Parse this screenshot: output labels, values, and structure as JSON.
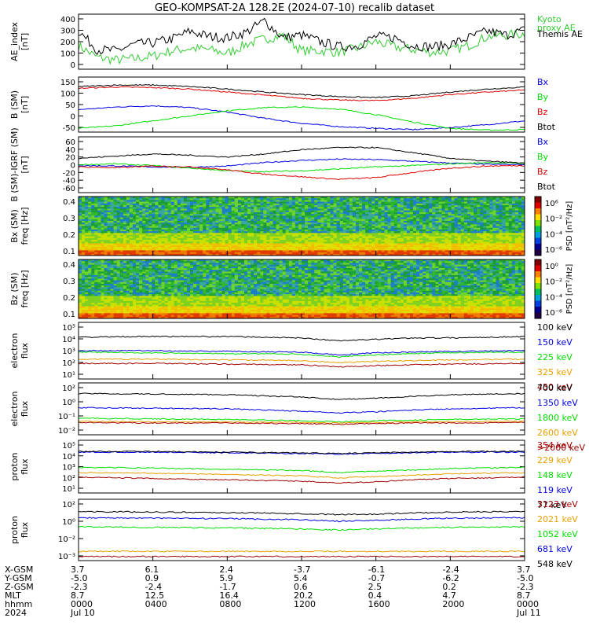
{
  "title": "GEO-KOMPSAT-2A 128.2E (2024-07-10) recalib dataset",
  "colors": {
    "black": "#000000",
    "blue": "#0000e0",
    "green": "#00dd00",
    "red": "#dd0000",
    "orange": "#e6a000",
    "darkred": "#a00000",
    "kyoto": "#33cc33"
  },
  "chart_data": [
    {
      "type": "line",
      "ylabel": "AE_index\n[nT]",
      "yticks": [
        "400",
        "300",
        "200",
        "100",
        "0"
      ],
      "ylim": [
        0,
        420
      ],
      "series": [
        {
          "name": "Kyoto\nproxy AE",
          "color": "kyoto",
          "x": [
            0,
            1,
            2,
            3,
            4,
            5,
            6,
            7,
            8,
            9,
            10,
            11,
            12,
            13,
            14,
            15,
            16,
            17,
            18,
            19,
            20,
            21,
            22,
            23,
            24
          ],
          "y": [
            180,
            90,
            70,
            80,
            100,
            140,
            160,
            150,
            120,
            190,
            230,
            260,
            140,
            140,
            130,
            160,
            210,
            170,
            150,
            130,
            140,
            180,
            250,
            260,
            270
          ]
        },
        {
          "name": "Themis AE",
          "color": "black",
          "x": [
            0,
            1,
            2,
            3,
            4,
            5,
            6,
            7,
            8,
            9,
            10,
            11,
            12,
            13,
            14,
            15,
            16,
            17,
            18,
            19,
            20,
            21,
            22,
            23,
            24
          ],
          "y": [
            290,
            150,
            140,
            190,
            200,
            230,
            290,
            250,
            240,
            280,
            370,
            240,
            260,
            210,
            170,
            180,
            250,
            240,
            180,
            170,
            190,
            240,
            290,
            260,
            300
          ]
        }
      ]
    },
    {
      "type": "line",
      "ylabel": "B (SM)\n[nT]",
      "yticks": [
        "150",
        "100",
        "50",
        "0",
        "-50"
      ],
      "ylim": [
        -60,
        160
      ],
      "series": [
        {
          "name": "Bx",
          "color": "blue",
          "x": [
            0,
            2,
            4,
            6,
            8,
            10,
            12,
            14,
            16,
            18,
            20,
            22,
            24
          ],
          "y": [
            30,
            40,
            45,
            38,
            20,
            -5,
            -25,
            -38,
            -45,
            -50,
            -42,
            -30,
            -15
          ]
        },
        {
          "name": "By",
          "color": "green",
          "x": [
            0,
            2,
            4,
            6,
            8,
            10,
            12,
            14,
            16,
            18,
            20,
            22,
            24
          ],
          "y": [
            -45,
            -35,
            -15,
            5,
            25,
            38,
            40,
            32,
            10,
            -20,
            -45,
            -52,
            -50
          ]
        },
        {
          "name": "Bz",
          "color": "red",
          "x": [
            0,
            2,
            4,
            6,
            8,
            10,
            12,
            14,
            16,
            18,
            20,
            22,
            24
          ],
          "y": [
            115,
            120,
            118,
            112,
            100,
            88,
            75,
            68,
            66,
            75,
            90,
            100,
            108
          ]
        },
        {
          "name": "Btot",
          "color": "black",
          "x": [
            0,
            2,
            4,
            6,
            8,
            10,
            12,
            14,
            16,
            18,
            20,
            22,
            24
          ],
          "y": [
            122,
            128,
            128,
            122,
            112,
            100,
            90,
            82,
            78,
            85,
            100,
            112,
            120
          ]
        }
      ]
    },
    {
      "type": "line",
      "ylabel": "B (SM)-IGRF (SM)\n[nT]",
      "yticks": [
        "60",
        "40",
        "20",
        "0",
        "-20",
        "-40",
        "-60"
      ],
      "ylim": [
        -65,
        65
      ],
      "series": [
        {
          "name": "Bx",
          "color": "blue",
          "x": [
            0,
            2,
            4,
            6,
            8,
            10,
            12,
            14,
            16,
            18,
            20,
            22,
            24
          ],
          "y": [
            -2,
            -3,
            -5,
            -6,
            -3,
            5,
            10,
            13,
            12,
            8,
            4,
            1,
            0
          ]
        },
        {
          "name": "By",
          "color": "green",
          "x": [
            0,
            2,
            4,
            6,
            8,
            10,
            12,
            14,
            16,
            18,
            20,
            22,
            24
          ],
          "y": [
            0,
            2,
            -2,
            -8,
            -14,
            -16,
            -14,
            -10,
            -5,
            -2,
            2,
            5,
            3
          ]
        },
        {
          "name": "Bz",
          "color": "red",
          "x": [
            0,
            2,
            4,
            6,
            8,
            10,
            12,
            14,
            16,
            18,
            20,
            22,
            24
          ],
          "y": [
            -5,
            -7,
            -3,
            -5,
            -12,
            -22,
            -28,
            -34,
            -30,
            -18,
            -8,
            -3,
            -2
          ]
        },
        {
          "name": "Btot",
          "color": "black",
          "x": [
            0,
            2,
            4,
            6,
            8,
            10,
            12,
            14,
            16,
            18,
            20,
            22,
            24
          ],
          "y": [
            15,
            20,
            25,
            22,
            18,
            25,
            35,
            40,
            40,
            28,
            15,
            8,
            4
          ]
        }
      ]
    },
    {
      "type": "heatmap",
      "ylabel": "Bx (SM)\nfreq [Hz]",
      "yticks": [
        "0.4",
        "0.3",
        "0.2",
        "0.1"
      ],
      "ylim": [
        0.05,
        0.5
      ],
      "colorbar_label": "PSD [nT²/Hz]",
      "colorbar_ticks": [
        "10⁶",
        "10⁻²",
        "10⁻⁴",
        "10⁻⁶"
      ]
    },
    {
      "type": "heatmap",
      "ylabel": "Bz (SM)\nfreq [Hz]",
      "yticks": [
        "0.4",
        "0.3",
        "0.2",
        "0.1"
      ],
      "ylim": [
        0.05,
        0.5
      ],
      "colorbar_label": "PSD [nT²/Hz]",
      "colorbar_ticks": [
        "10⁰",
        "10⁻²",
        "10⁻⁴",
        "10⁻⁶"
      ]
    },
    {
      "type": "line",
      "log": true,
      "ylabel": "electron\nflux",
      "yticks": [
        "10⁵",
        "10⁴",
        "10³",
        "10²",
        "10¹"
      ],
      "ylim": [
        1,
        5
      ],
      "series": [
        {
          "name": "100 keV",
          "color": "black",
          "x": [
            0,
            4,
            8,
            12,
            14,
            16,
            18,
            20,
            24
          ],
          "y": [
            3.95,
            4.0,
            4.0,
            3.9,
            3.7,
            3.8,
            3.9,
            3.9,
            4.0
          ]
        },
        {
          "name": "150 keV",
          "color": "blue",
          "x": [
            0,
            4,
            8,
            12,
            14,
            16,
            18,
            20,
            24
          ],
          "y": [
            3.0,
            3.0,
            2.95,
            2.9,
            2.7,
            2.85,
            2.9,
            2.95,
            3.0
          ]
        },
        {
          "name": "225 keV",
          "color": "green",
          "x": [
            0,
            4,
            8,
            12,
            14,
            16,
            18,
            20,
            24
          ],
          "y": [
            2.9,
            2.85,
            2.8,
            2.75,
            2.55,
            2.7,
            2.8,
            2.85,
            2.9
          ]
        },
        {
          "name": "325 keV",
          "color": "orange",
          "x": [
            0,
            4,
            8,
            12,
            14,
            16,
            18,
            20,
            24
          ],
          "y": [
            2.4,
            2.4,
            2.35,
            2.3,
            2.15,
            2.25,
            2.3,
            2.35,
            2.4
          ]
        },
        {
          "name": "450 keV",
          "color": "darkred",
          "x": [
            0,
            4,
            8,
            12,
            14,
            16,
            18,
            20,
            24
          ],
          "y": [
            2.1,
            2.1,
            2.05,
            2.0,
            1.85,
            1.95,
            2.0,
            2.05,
            2.1
          ]
        }
      ]
    },
    {
      "type": "line",
      "log": true,
      "ylabel": "electron\nflux",
      "yticks": [
        "10²",
        "10⁰",
        "10⁻¹",
        "10⁻²"
      ],
      "ylim": [
        -2.2,
        2.2
      ],
      "series": [
        {
          "name": "700 keV",
          "color": "black",
          "x": [
            0,
            4,
            8,
            12,
            14,
            16,
            18,
            20,
            24
          ],
          "y": [
            1.3,
            1.25,
            1.2,
            1.0,
            0.8,
            0.9,
            1.05,
            1.2,
            1.3
          ]
        },
        {
          "name": "1350 keV",
          "color": "blue",
          "x": [
            0,
            4,
            8,
            12,
            14,
            16,
            18,
            20,
            24
          ],
          "y": [
            0.1,
            0.05,
            0.0,
            -0.2,
            -0.35,
            -0.25,
            -0.1,
            0.0,
            0.1
          ]
        },
        {
          "name": "1800 keV",
          "color": "green",
          "x": [
            0,
            4,
            8,
            12,
            14,
            16,
            18,
            20,
            24
          ],
          "y": [
            -0.8,
            -0.85,
            -0.9,
            -1.0,
            -1.1,
            -1.0,
            -0.95,
            -0.9,
            -0.85
          ]
        },
        {
          "name": "2600 keV",
          "color": "orange",
          "x": [
            0,
            4,
            8,
            12,
            14,
            16,
            18,
            20,
            24
          ],
          "y": [
            -1.05,
            -1.1,
            -1.1,
            -1.15,
            -1.2,
            -1.15,
            -1.1,
            -1.1,
            -1.05
          ]
        },
        {
          "name": ">2000 keV",
          "color": "darkred",
          "x": [
            0,
            4,
            8,
            12,
            14,
            16,
            18,
            20,
            24
          ],
          "y": [
            -1.15,
            -1.2,
            -1.2,
            -1.25,
            -1.3,
            -1.25,
            -1.2,
            -1.2,
            -1.15
          ]
        }
      ]
    },
    {
      "type": "line",
      "log": true,
      "ylabel": "proton\nflux",
      "yticks": [
        "10⁵",
        "10⁴",
        "10³",
        "10²",
        "10¹"
      ],
      "ylim": [
        1,
        5
      ],
      "series": [
        {
          "name": "354 keV",
          "color": "darkred",
          "x": [
            0,
            4,
            8,
            12,
            14,
            16,
            18,
            20,
            24
          ],
          "y": [
            2.2,
            2.1,
            2.0,
            1.9,
            1.75,
            1.85,
            2.0,
            2.1,
            2.2
          ]
        },
        {
          "name": "229 keV",
          "color": "orange",
          "x": [
            0,
            4,
            8,
            12,
            14,
            16,
            18,
            20,
            24
          ],
          "y": [
            2.55,
            2.5,
            2.4,
            2.3,
            2.15,
            2.25,
            2.35,
            2.45,
            2.55
          ]
        },
        {
          "name": "148 keV",
          "color": "green",
          "x": [
            0,
            4,
            8,
            12,
            14,
            16,
            18,
            20,
            24
          ],
          "y": [
            2.95,
            2.9,
            2.8,
            2.7,
            2.55,
            2.65,
            2.75,
            2.85,
            2.95
          ]
        },
        {
          "name": "119 keV",
          "color": "blue",
          "x": [
            0,
            4,
            8,
            12,
            14,
            16,
            18,
            20,
            24
          ],
          "y": [
            4.1,
            4.1,
            4.05,
            4.0,
            3.95,
            4.0,
            4.05,
            4.1,
            4.1
          ]
        },
        {
          "name": "77 keV",
          "color": "black",
          "x": [
            0,
            4,
            8,
            12,
            14,
            16,
            18,
            20,
            24
          ],
          "y": [
            4.15,
            4.15,
            4.1,
            4.05,
            4.0,
            4.05,
            4.1,
            4.15,
            4.15
          ]
        }
      ]
    },
    {
      "type": "line",
      "log": true,
      "ylabel": "proton\nflux",
      "yticks": [
        "10²",
        "10⁰",
        "10⁻²",
        "10⁻³"
      ],
      "ylim": [
        -3.2,
        2.8
      ],
      "series": [
        {
          "name": "3123 keV",
          "color": "darkred",
          "x": [
            0,
            4,
            8,
            12,
            14,
            16,
            18,
            20,
            24
          ],
          "y": [
            -2.8,
            -2.8,
            -2.8,
            -2.8,
            -2.8,
            -2.8,
            -2.8,
            -2.8,
            -2.8
          ]
        },
        {
          "name": "2021 keV",
          "color": "orange",
          "x": [
            0,
            4,
            8,
            12,
            14,
            16,
            18,
            20,
            24
          ],
          "y": [
            -2.3,
            -2.3,
            -2.3,
            -2.3,
            -2.3,
            -2.3,
            -2.3,
            -2.3,
            -2.3
          ]
        },
        {
          "name": "1052 keV",
          "color": "green",
          "x": [
            0,
            4,
            8,
            12,
            14,
            16,
            18,
            20,
            24
          ],
          "y": [
            0.1,
            0.05,
            0.0,
            -0.1,
            -0.2,
            -0.1,
            0.0,
            0.05,
            0.1
          ]
        },
        {
          "name": "681 keV",
          "color": "blue",
          "x": [
            0,
            4,
            8,
            12,
            14,
            16,
            18,
            20,
            24
          ],
          "y": [
            1.0,
            0.95,
            0.9,
            0.8,
            0.65,
            0.75,
            0.85,
            0.95,
            1.0
          ]
        },
        {
          "name": "548 keV",
          "color": "black",
          "x": [
            0,
            4,
            8,
            12,
            14,
            16,
            18,
            20,
            24
          ],
          "y": [
            1.6,
            1.55,
            1.5,
            1.4,
            1.3,
            1.35,
            1.45,
            1.55,
            1.6
          ]
        }
      ]
    }
  ],
  "footer": {
    "row_labels": [
      "X-GSM",
      "Y-GSM",
      "Z-GSM",
      "MLT",
      "hhmm",
      "2024"
    ],
    "columns": [
      [
        "3.7",
        "-5.0",
        "-2.3",
        "8.7",
        "0000",
        "Jul 10"
      ],
      [
        "6.1",
        "0.9",
        "-2.4",
        "12.5",
        "0400",
        ""
      ],
      [
        "2.4",
        "5.9",
        "-1.7",
        "16.4",
        "0800",
        ""
      ],
      [
        "-3.7",
        "5.4",
        "0.6",
        "20.2",
        "1200",
        ""
      ],
      [
        "-6.1",
        "-0.7",
        "2.5",
        "0.4",
        "1600",
        ""
      ],
      [
        "-2.4",
        "-6.2",
        "0.2",
        "4.7",
        "2000",
        ""
      ],
      [
        "3.7",
        "-5.0",
        "-2.3",
        "8.7",
        "0000",
        "Jul 11"
      ]
    ]
  }
}
